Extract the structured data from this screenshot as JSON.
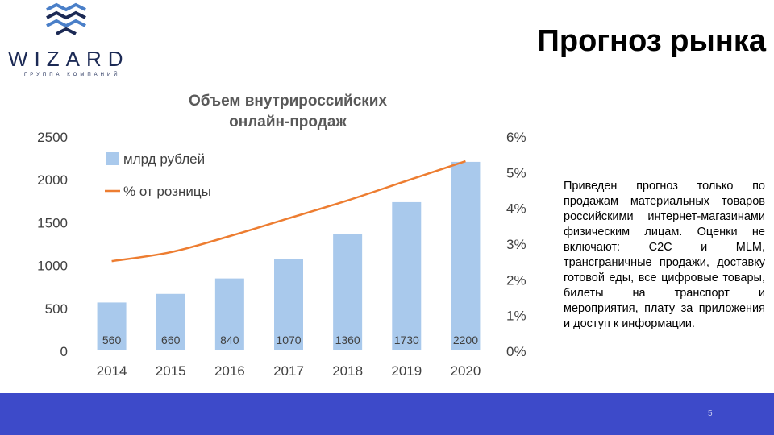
{
  "logo": {
    "word": "WIZARD",
    "subtitle": "ГРУППА КОМПАНИЙ"
  },
  "slide": {
    "title": "Прогноз рынка",
    "description": "Приведен прогноз только по продажам материальных товаров российскими интернет-магазинами физическим лицам. Оценки не включают: C2C и MLM, трансграничные продажи, доставку готовой еды, все цифровые товары, билеты на транспорт и мероприятия, плату за приложения и доступ к информации.",
    "page_number": "5"
  },
  "colors": {
    "bar": "#a9c9ec",
    "line": "#ed7d31",
    "footer": "#3d4ac9",
    "logo": "#1c2a55"
  },
  "chart_data": {
    "type": "bar",
    "title": "Объем внутрироссийских онлайн-продаж",
    "title_lines": [
      "Объем внутрироссийских",
      "онлайн-продаж"
    ],
    "categories": [
      "2014",
      "2015",
      "2016",
      "2017",
      "2018",
      "2019",
      "2020"
    ],
    "series": [
      {
        "name": "млрд рублей",
        "kind": "bar",
        "axis": "left",
        "values": [
          560,
          660,
          840,
          1070,
          1360,
          1730,
          2200
        ],
        "labels": [
          "560",
          "660",
          "840",
          "1070",
          "1360",
          "1730",
          "2200"
        ]
      },
      {
        "name": "% от розницы",
        "kind": "line",
        "axis": "right",
        "values": [
          2.5,
          2.75,
          3.2,
          3.7,
          4.2,
          4.75,
          5.3
        ]
      }
    ],
    "ylim": [
      0,
      2500
    ],
    "yticks": [
      "0",
      "500",
      "1000",
      "1500",
      "2000",
      "2500"
    ],
    "y2lim": [
      0,
      6
    ],
    "y2ticks": [
      "0%",
      "1%",
      "2%",
      "3%",
      "4%",
      "5%",
      "6%"
    ],
    "legend_position": "top-left",
    "grid": false
  }
}
